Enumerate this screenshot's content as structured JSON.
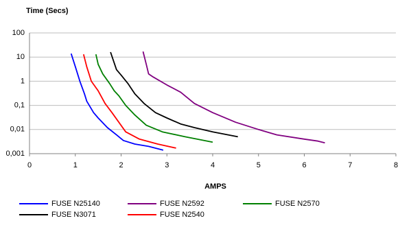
{
  "chart_data": {
    "type": "line",
    "title": "Time (Secs)",
    "x_label": "AMPS",
    "xlim": [
      0,
      8
    ],
    "xticks": [
      0,
      1,
      2,
      3,
      4,
      5,
      6,
      7,
      8
    ],
    "ylim": [
      0.001,
      100
    ],
    "log_y": true,
    "yticks": [
      {
        "value": 0.001,
        "label": "0,001"
      },
      {
        "value": 0.01,
        "label": "0,01"
      },
      {
        "value": 0.1,
        "label": "0,1"
      },
      1,
      10,
      100
    ],
    "grid": true,
    "legend": "bottom",
    "series": [
      {
        "name": "FUSE N25140",
        "color": "#0000ff",
        "x": [
          0.91,
          1.0,
          1.1,
          1.2,
          1.25,
          1.4,
          1.5,
          1.7,
          1.9,
          2.05,
          2.3,
          2.6,
          2.92
        ],
        "values": [
          14,
          4,
          1,
          0.3,
          0.15,
          0.05,
          0.03,
          0.012,
          0.006,
          0.0035,
          0.0025,
          0.002,
          0.0014
        ]
      },
      {
        "name": "FUSE N2592",
        "color": "#800080",
        "x": [
          2.48,
          2.55,
          2.6,
          2.7,
          3.0,
          3.3,
          3.6,
          4.0,
          4.5,
          5.0,
          5.4,
          6.0,
          6.3,
          6.45
        ],
        "values": [
          17,
          5,
          2,
          1.5,
          0.7,
          0.35,
          0.12,
          0.05,
          0.02,
          0.01,
          0.006,
          0.004,
          0.0033,
          0.0028
        ]
      },
      {
        "name": "FUSE N2570",
        "color": "#008000",
        "x": [
          1.45,
          1.5,
          1.6,
          1.75,
          1.85,
          1.95,
          2.1,
          2.3,
          2.55,
          2.9,
          3.4,
          4.0
        ],
        "values": [
          13,
          5,
          2,
          0.8,
          0.4,
          0.25,
          0.1,
          0.04,
          0.015,
          0.008,
          0.005,
          0.003
        ]
      },
      {
        "name": "FUSE N3071",
        "color": "#000000",
        "x": [
          1.77,
          1.9,
          2.0,
          2.15,
          2.3,
          2.5,
          2.75,
          3.0,
          3.3,
          3.6,
          4.0,
          4.55
        ],
        "values": [
          16,
          3,
          1.8,
          0.8,
          0.3,
          0.12,
          0.05,
          0.03,
          0.017,
          0.012,
          0.008,
          0.005
        ]
      },
      {
        "name": "FUSE N2540",
        "color": "#ff0000",
        "x": [
          1.18,
          1.25,
          1.35,
          1.5,
          1.65,
          1.8,
          1.95,
          2.1,
          2.4,
          2.8,
          3.2
        ],
        "values": [
          13,
          4,
          1,
          0.4,
          0.12,
          0.05,
          0.02,
          0.008,
          0.004,
          0.0025,
          0.0017
        ]
      }
    ]
  }
}
